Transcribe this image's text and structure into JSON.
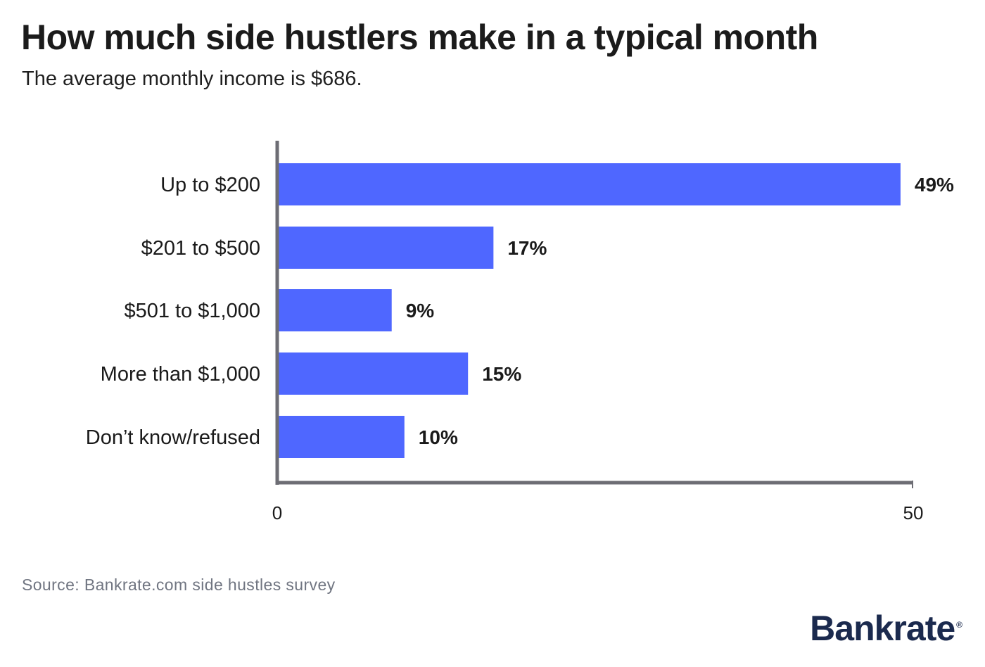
{
  "header": {
    "title": "How much side hustlers make in a typical month",
    "subtitle": "The average monthly income is $686."
  },
  "footer": {
    "source": "Source: Bankrate.com side hustles survey",
    "logo": "Bankrate",
    "logo_mark": "®"
  },
  "colors": {
    "bar": "#4f67ff",
    "axis": "#6d6d74",
    "text": "#1a1a1a",
    "logo": "#1b2a4e"
  },
  "chart_data": {
    "type": "bar",
    "orientation": "horizontal",
    "categories": [
      "Up to $200",
      "$201 to $500",
      "$501 to $1,000",
      "More than $1,000",
      "Don’t know/refused"
    ],
    "values": [
      49,
      17,
      9,
      15,
      10
    ],
    "value_labels": [
      "49%",
      "17%",
      "9%",
      "15%",
      "10%"
    ],
    "xlim": [
      0,
      50
    ],
    "x_ticks": [
      "0",
      "50"
    ],
    "grid": false,
    "legend": "none",
    "title": "How much side hustlers make in a typical month",
    "subtitle": "The average monthly income is $686."
  }
}
